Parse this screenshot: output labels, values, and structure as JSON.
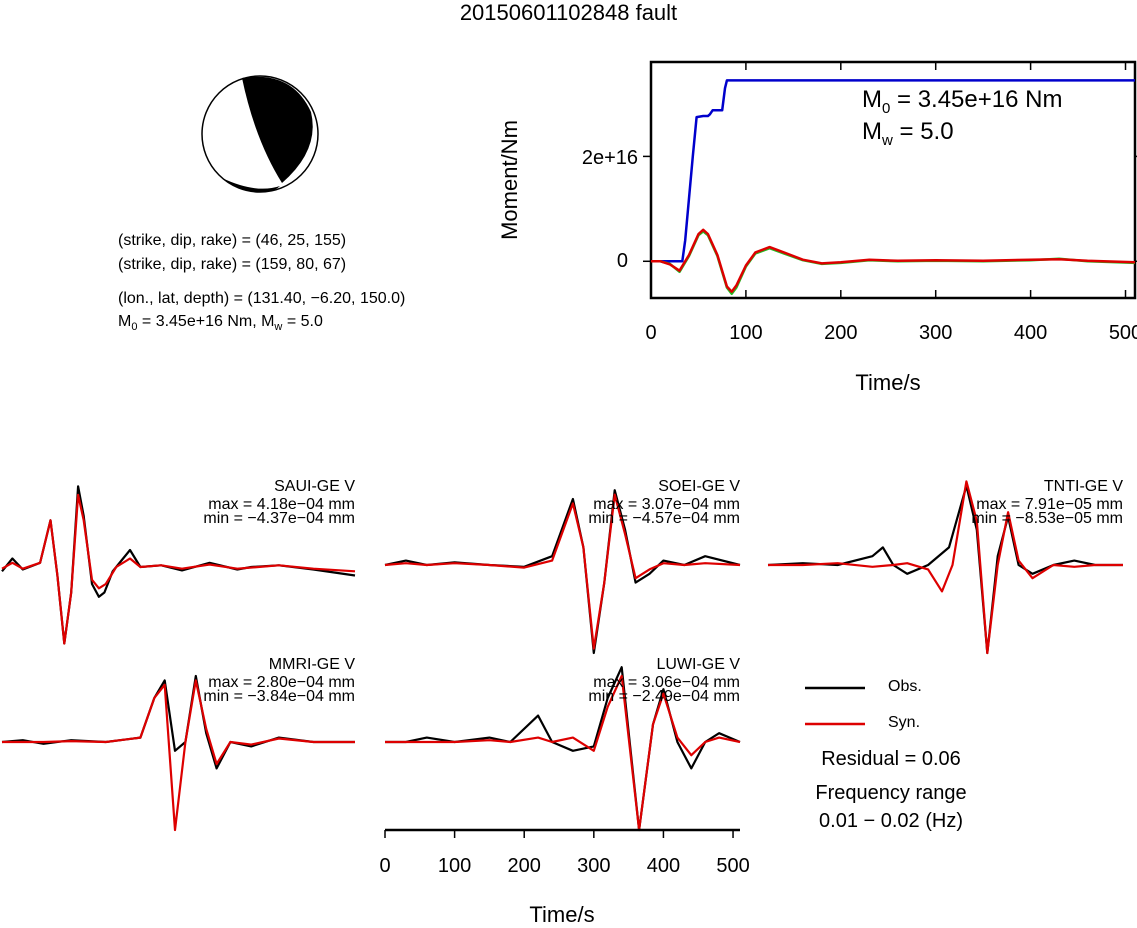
{
  "title": "20150601102848 fault",
  "solution": {
    "plane1": "(strike, dip, rake) = (46, 25, 155)",
    "plane2": "(strike, dip, rake) = (159, 80, 67)",
    "location": "(lon., lat, depth) = (131.40, −6.20, 150.0)",
    "moment_line": {
      "m0_prefix": "M",
      "m0_sub": "0",
      "m0_rest": " = 3.45e+16 Nm, M",
      "mw_sub": "w",
      "mw_rest": " = 5.0"
    }
  },
  "moment_panel": {
    "ylabel": "Moment/Nm",
    "xlabel": "Time/s",
    "ytick_labels": [
      "0",
      "2e+16"
    ],
    "xtick_labels": [
      "0",
      "100",
      "200",
      "300",
      "400",
      "500"
    ],
    "m0_text": {
      "prefix": "M",
      "sub": "0",
      "rest": " = 3.45e+16 Nm"
    },
    "mw_text": {
      "prefix": "M",
      "sub": "w",
      "rest": " = 5.0"
    }
  },
  "waveform_axis": {
    "xlabel": "Time/s",
    "xtick_labels": [
      "0",
      "100",
      "200",
      "300",
      "400",
      "500"
    ]
  },
  "legend": {
    "obs": "Obs.",
    "syn": "Syn."
  },
  "residual": "Residual = 0.06",
  "frequency": {
    "label": "Frequency range",
    "value": "0.01 − 0.02 (Hz)"
  },
  "colors": {
    "obs": "#000000",
    "syn": "#dd0000",
    "cumulative": "#0000cc",
    "rate_green": "#22bb22",
    "rate_red": "#dd0000"
  },
  "chart_data": [
    {
      "type": "line",
      "name": "moment",
      "xlabel": "Time/s",
      "ylabel": "Moment/Nm",
      "xlim": [
        0,
        510
      ],
      "ylim": [
        -7000000000000000.0,
        3.8e+16
      ],
      "series": [
        {
          "name": "cumulative moment",
          "x": [
            0,
            33,
            36,
            40,
            44,
            48,
            55,
            60,
            62,
            65,
            70,
            75,
            78,
            80,
            90,
            510
          ],
          "y": [
            0,
            0,
            4000000000000000.0,
            1.2e+16,
            2e+16,
            2.75e+16,
            2.77e+16,
            2.77e+16,
            2.8e+16,
            2.88e+16,
            2.88e+16,
            2.88e+16,
            3.3e+16,
            3.45e+16,
            3.45e+16,
            3.45e+16
          ]
        },
        {
          "name": "moment rate (obs)",
          "x": [
            0,
            10,
            20,
            30,
            40,
            50,
            55,
            60,
            70,
            80,
            85,
            90,
            100,
            110,
            125,
            140,
            160,
            180,
            200,
            230,
            260,
            300,
            350,
            400,
            430,
            460,
            510
          ],
          "y": [
            0,
            0,
            -500000000000000.0,
            -2000000000000000.0,
            1000000000000000.0,
            5000000000000000.0,
            5700000000000000.0,
            5000000000000000.0,
            1000000000000000.0,
            -5000000000000000.0,
            -6200000000000000.0,
            -5000000000000000.0,
            -1000000000000000.0,
            1500000000000000.0,
            2500000000000000.0,
            1500000000000000.0,
            200000000000000.0,
            -500000000000000.0,
            -300000000000000.0,
            200000000000000.0,
            0,
            100000000000000.0,
            0,
            200000000000000.0,
            500000000000000.0,
            0,
            -300000000000000.0
          ]
        },
        {
          "name": "moment rate (syn)",
          "x": [
            0,
            10,
            20,
            30,
            40,
            50,
            55,
            60,
            70,
            80,
            85,
            90,
            100,
            110,
            125,
            140,
            160,
            180,
            200,
            230,
            260,
            300,
            350,
            400,
            430,
            460,
            510
          ],
          "y": [
            0,
            0,
            -600000000000000.0,
            -1800000000000000.0,
            1200000000000000.0,
            5200000000000000.0,
            6000000000000000.0,
            5200000000000000.0,
            1200000000000000.0,
            -4800000000000000.0,
            -5800000000000000.0,
            -4600000000000000.0,
            -800000000000000.0,
            1700000000000000.0,
            2700000000000000.0,
            1700000000000000.0,
            300000000000000.0,
            -400000000000000.0,
            -200000000000000.0,
            300000000000000.0,
            100000000000000.0,
            200000000000000.0,
            100000000000000.0,
            300000000000000.0,
            400000000000000.0,
            100000000000000.0,
            -200000000000000.0
          ]
        }
      ]
    },
    {
      "type": "line",
      "name": "waveforms",
      "xlabel": "Time/s",
      "xlim": [
        0,
        510
      ],
      "stations": [
        {
          "label": "SAUI-GE V",
          "max": "max = 4.18e−04 mm",
          "min": "min = −4.37e−04 mm",
          "obs": [
            [
              0,
              -0.05
            ],
            [
              15,
              0.1
            ],
            [
              30,
              -0.03
            ],
            [
              55,
              0.05
            ],
            [
              70,
              0.55
            ],
            [
              80,
              -0.1
            ],
            [
              90,
              -0.9
            ],
            [
              100,
              -0.3
            ],
            [
              110,
              0.95
            ],
            [
              118,
              0.6
            ],
            [
              130,
              -0.2
            ],
            [
              140,
              -0.35
            ],
            [
              148,
              -0.3
            ],
            [
              160,
              -0.05
            ],
            [
              175,
              0.1
            ],
            [
              185,
              0.2
            ],
            [
              200,
              0
            ],
            [
              230,
              0.02
            ],
            [
              260,
              -0.04
            ],
            [
              300,
              0.05
            ],
            [
              340,
              -0.03
            ],
            [
              360,
              0.0
            ],
            [
              400,
              0.02
            ],
            [
              450,
              -0.03
            ],
            [
              510,
              -0.1
            ]
          ],
          "syn": [
            [
              0,
              -0.02
            ],
            [
              15,
              0.05
            ],
            [
              30,
              -0.02
            ],
            [
              55,
              0.05
            ],
            [
              70,
              0.55
            ],
            [
              80,
              -0.1
            ],
            [
              90,
              -0.9
            ],
            [
              100,
              -0.3
            ],
            [
              110,
              0.85
            ],
            [
              118,
              0.55
            ],
            [
              130,
              -0.15
            ],
            [
              140,
              -0.25
            ],
            [
              150,
              -0.2
            ],
            [
              165,
              0
            ],
            [
              185,
              0.1
            ],
            [
              200,
              0
            ],
            [
              230,
              0.02
            ],
            [
              260,
              -0.02
            ],
            [
              300,
              0.03
            ],
            [
              340,
              -0.02
            ],
            [
              400,
              0.02
            ],
            [
              450,
              -0.02
            ],
            [
              510,
              -0.05
            ]
          ]
        },
        {
          "label": "SOEI-GE V",
          "max": "max = 3.07e−04 mm",
          "min": "min = −4.57e−04 mm",
          "obs": [
            [
              0,
              0
            ],
            [
              30,
              0.05
            ],
            [
              60,
              0
            ],
            [
              100,
              0.03
            ],
            [
              150,
              0.0
            ],
            [
              200,
              -0.02
            ],
            [
              240,
              0.1
            ],
            [
              270,
              0.75
            ],
            [
              285,
              0.2
            ],
            [
              300,
              -1.0
            ],
            [
              315,
              -0.2
            ],
            [
              330,
              0.85
            ],
            [
              345,
              0.4
            ],
            [
              360,
              -0.2
            ],
            [
              380,
              -0.1
            ],
            [
              400,
              0.05
            ],
            [
              430,
              0.0
            ],
            [
              460,
              0.1
            ],
            [
              510,
              0.0
            ]
          ],
          "syn": [
            [
              0,
              0
            ],
            [
              30,
              0.02
            ],
            [
              60,
              0
            ],
            [
              100,
              0.02
            ],
            [
              150,
              0
            ],
            [
              200,
              -0.03
            ],
            [
              240,
              0.05
            ],
            [
              270,
              0.7
            ],
            [
              285,
              0.2
            ],
            [
              300,
              -0.95
            ],
            [
              315,
              -0.2
            ],
            [
              330,
              0.8
            ],
            [
              345,
              0.35
            ],
            [
              360,
              -0.15
            ],
            [
              380,
              -0.05
            ],
            [
              400,
              0.02
            ],
            [
              430,
              0.0
            ],
            [
              460,
              0.02
            ],
            [
              510,
              0.0
            ]
          ]
        },
        {
          "label": "TNTI-GE V",
          "max": "max = 7.91e−05 mm",
          "min": "min = −8.53e−05 mm",
          "obs": [
            [
              0,
              0
            ],
            [
              50,
              0.02
            ],
            [
              100,
              0.0
            ],
            [
              150,
              0.1
            ],
            [
              165,
              0.2
            ],
            [
              180,
              0
            ],
            [
              200,
              -0.1
            ],
            [
              230,
              0.0
            ],
            [
              260,
              0.2
            ],
            [
              285,
              0.9
            ],
            [
              300,
              0.4
            ],
            [
              315,
              -1.0
            ],
            [
              330,
              0.1
            ],
            [
              345,
              0.55
            ],
            [
              360,
              0.0
            ],
            [
              380,
              -0.1
            ],
            [
              410,
              0.0
            ],
            [
              440,
              0.05
            ],
            [
              470,
              0.0
            ],
            [
              510,
              0.0
            ]
          ],
          "syn": [
            [
              0,
              0
            ],
            [
              50,
              0.0
            ],
            [
              100,
              0.02
            ],
            [
              150,
              -0.02
            ],
            [
              180,
              0.0
            ],
            [
              200,
              0.02
            ],
            [
              230,
              -0.05
            ],
            [
              250,
              -0.3
            ],
            [
              265,
              0.0
            ],
            [
              285,
              0.95
            ],
            [
              300,
              0.5
            ],
            [
              315,
              -1.0
            ],
            [
              330,
              0.0
            ],
            [
              345,
              0.6
            ],
            [
              360,
              0.05
            ],
            [
              380,
              -0.15
            ],
            [
              410,
              0.0
            ],
            [
              440,
              -0.02
            ],
            [
              470,
              0.0
            ],
            [
              510,
              0.0
            ]
          ]
        },
        {
          "label": "MMRI-GE V",
          "max": "max = 2.80e−04 mm",
          "min": "min = −3.84e−04 mm",
          "obs": [
            [
              0,
              0.0
            ],
            [
              30,
              0.02
            ],
            [
              60,
              -0.02
            ],
            [
              100,
              0.02
            ],
            [
              150,
              0.0
            ],
            [
              200,
              0.05
            ],
            [
              220,
              0.5
            ],
            [
              235,
              0.7
            ],
            [
              250,
              -0.1
            ],
            [
              265,
              0.0
            ],
            [
              280,
              0.75
            ],
            [
              295,
              0.1
            ],
            [
              310,
              -0.3
            ],
            [
              330,
              0.0
            ],
            [
              360,
              -0.05
            ],
            [
              400,
              0.05
            ],
            [
              450,
              0.0
            ],
            [
              510,
              0.0
            ]
          ],
          "syn": [
            [
              0,
              0.0
            ],
            [
              30,
              0.0
            ],
            [
              60,
              0.0
            ],
            [
              100,
              0.01
            ],
            [
              150,
              0.0
            ],
            [
              200,
              0.05
            ],
            [
              220,
              0.5
            ],
            [
              235,
              0.65
            ],
            [
              250,
              -1.0
            ],
            [
              265,
              0.0
            ],
            [
              280,
              0.7
            ],
            [
              295,
              0.15
            ],
            [
              310,
              -0.25
            ],
            [
              330,
              0.0
            ],
            [
              360,
              -0.03
            ],
            [
              400,
              0.04
            ],
            [
              450,
              0.0
            ],
            [
              510,
              0.0
            ]
          ]
        },
        {
          "label": "LUWI-GE V",
          "max": "max = 3.06e−04 mm",
          "min": "min = −2.49e−04 mm",
          "obs": [
            [
              0,
              0.0
            ],
            [
              30,
              0.0
            ],
            [
              60,
              0.05
            ],
            [
              100,
              0.0
            ],
            [
              150,
              0.05
            ],
            [
              180,
              0.0
            ],
            [
              220,
              0.3
            ],
            [
              240,
              0.0
            ],
            [
              270,
              -0.1
            ],
            [
              300,
              -0.05
            ],
            [
              320,
              0.5
            ],
            [
              340,
              0.85
            ],
            [
              365,
              -1.0
            ],
            [
              385,
              0.2
            ],
            [
              400,
              0.6
            ],
            [
              420,
              0.0
            ],
            [
              440,
              -0.3
            ],
            [
              460,
              0.0
            ],
            [
              480,
              0.1
            ],
            [
              510,
              0.0
            ]
          ],
          "syn": [
            [
              0,
              0.0
            ],
            [
              30,
              0.0
            ],
            [
              60,
              0.0
            ],
            [
              100,
              0.0
            ],
            [
              150,
              0.02
            ],
            [
              180,
              0.0
            ],
            [
              220,
              0.05
            ],
            [
              240,
              0.0
            ],
            [
              270,
              0.05
            ],
            [
              300,
              -0.1
            ],
            [
              320,
              0.4
            ],
            [
              340,
              0.75
            ],
            [
              365,
              -1.0
            ],
            [
              385,
              0.2
            ],
            [
              400,
              0.55
            ],
            [
              420,
              0.05
            ],
            [
              440,
              -0.15
            ],
            [
              460,
              0.0
            ],
            [
              480,
              0.05
            ],
            [
              510,
              0.0
            ]
          ]
        }
      ]
    }
  ]
}
